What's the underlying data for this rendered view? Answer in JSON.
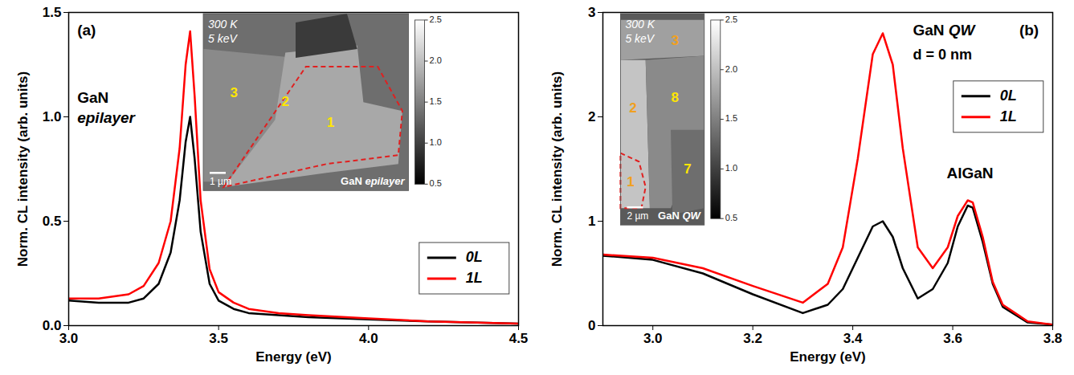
{
  "chart_data": [
    {
      "type": "line",
      "panel": "(a)",
      "annotations": [
        "GaN",
        "epilayer"
      ],
      "x_label": "Energy (eV)",
      "y_label": "Norm. CL intensity (arb. units)",
      "x": [
        3.0,
        3.1,
        3.2,
        3.25,
        3.3,
        3.34,
        3.37,
        3.39,
        3.405,
        3.42,
        3.44,
        3.47,
        3.5,
        3.55,
        3.6,
        3.7,
        3.8,
        4.0,
        4.2,
        4.5
      ],
      "series": [
        {
          "name": "0L",
          "color": "#000000",
          "values": [
            0.12,
            0.11,
            0.11,
            0.13,
            0.2,
            0.35,
            0.6,
            0.88,
            1.0,
            0.8,
            0.45,
            0.2,
            0.12,
            0.08,
            0.06,
            0.05,
            0.04,
            0.03,
            0.02,
            0.01
          ]
        },
        {
          "name": "1L",
          "color": "#ff0000",
          "values": [
            0.13,
            0.13,
            0.15,
            0.19,
            0.3,
            0.5,
            0.85,
            1.25,
            1.41,
            1.1,
            0.6,
            0.27,
            0.16,
            0.11,
            0.08,
            0.06,
            0.05,
            0.035,
            0.02,
            0.01
          ]
        }
      ],
      "xlim": [
        3.0,
        4.5
      ],
      "xticks": [
        {
          "value": 3,
          "label": "3.0"
        },
        3.5,
        {
          "value": 4,
          "label": "4.0"
        },
        4.5
      ],
      "ylim": [
        0,
        1.5
      ],
      "yticks": [
        {
          "value": 0,
          "label": "0.0"
        },
        0.5,
        {
          "value": 1,
          "label": "1.0"
        },
        1.5
      ],
      "legend": "lower right",
      "inset": {
        "texts": [
          "300 K",
          "5 keV"
        ],
        "scale_bar": "1 µm",
        "sample": [
          "GaN",
          "epilayer"
        ],
        "region_labels": [
          "1",
          "2",
          "3"
        ],
        "colorbar": {
          "lim": [
            0.5,
            2.5
          ],
          "ticks": [
            0.5,
            {
              "value": 1,
              "label": "1.0"
            },
            1.5,
            {
              "value": 2,
              "label": "2.0"
            },
            2.5
          ]
        }
      }
    },
    {
      "type": "line",
      "panel": "(b)",
      "annotations": [
        "GaN",
        "QW",
        "d = 0 nm",
        "AlGaN"
      ],
      "x_label": "Energy (eV)",
      "y_label": "Norm. CL intensity (arb. units)",
      "x": [
        2.9,
        3.0,
        3.1,
        3.2,
        3.3,
        3.35,
        3.38,
        3.41,
        3.44,
        3.46,
        3.48,
        3.5,
        3.53,
        3.56,
        3.59,
        3.61,
        3.63,
        3.64,
        3.66,
        3.68,
        3.7,
        3.75,
        3.8
      ],
      "series": [
        {
          "name": "0L",
          "color": "#000000",
          "values": [
            0.67,
            0.63,
            0.5,
            0.3,
            0.12,
            0.2,
            0.35,
            0.65,
            0.95,
            1.0,
            0.85,
            0.55,
            0.26,
            0.35,
            0.6,
            0.95,
            1.15,
            1.13,
            0.8,
            0.4,
            0.18,
            0.03,
            0.01
          ]
        },
        {
          "name": "1L",
          "color": "#ff0000",
          "values": [
            0.68,
            0.65,
            0.55,
            0.38,
            0.22,
            0.4,
            0.75,
            1.6,
            2.6,
            2.8,
            2.5,
            1.7,
            0.75,
            0.55,
            0.75,
            1.05,
            1.2,
            1.18,
            0.85,
            0.42,
            0.2,
            0.04,
            0.01
          ]
        }
      ],
      "xlim": [
        2.9,
        3.8
      ],
      "xticks": [
        {
          "value": 3,
          "label": "3.0"
        },
        3.2,
        3.4,
        3.6,
        3.8
      ],
      "ylim": [
        0,
        3
      ],
      "yticks": [
        0,
        1,
        2,
        3
      ],
      "legend": "upper right",
      "inset": {
        "texts": [
          "300 K",
          "5 keV"
        ],
        "scale_bar": "2 µm",
        "sample": [
          "GaN",
          "QW"
        ],
        "region_labels": [
          "1",
          "2",
          "3",
          "8",
          "7"
        ],
        "colorbar": {
          "lim": [
            0.5,
            2.5
          ],
          "ticks": [
            0.5,
            {
              "value": 1,
              "label": "1.0"
            },
            1.5,
            {
              "value": 2,
              "label": "2.0"
            },
            2.5
          ]
        }
      }
    }
  ]
}
